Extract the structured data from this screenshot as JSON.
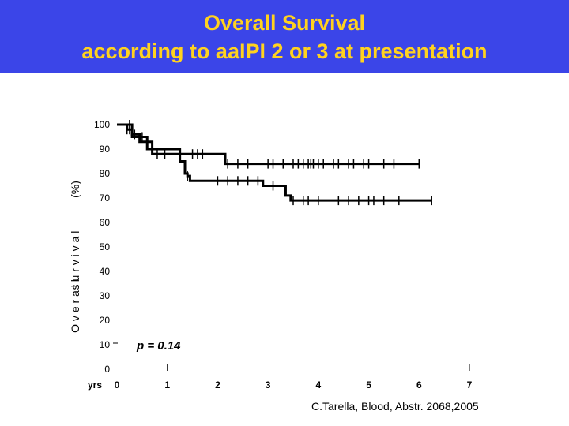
{
  "header": {
    "title_line1": "Overall Survival",
    "title_line2": "according to aaIPI  2 or 3  at presentation",
    "bar_color": "#3b45e8",
    "text_color": "#ffd21f"
  },
  "chart_data": {
    "type": "line",
    "title": "Overall Survival according to aaIPI 2 or 3 at presentation",
    "xlabel": "yrs",
    "ylabel_parts": [
      "(%)",
      "s u r v i v a l",
      "O v e r a l l"
    ],
    "x_ticks": [
      "0",
      "1",
      "2",
      "3",
      "4",
      "5",
      "6",
      "7"
    ],
    "y_ticks": [
      "0",
      "10",
      "20",
      "30",
      "40",
      "50",
      "60",
      "70",
      "80",
      "90",
      "100"
    ],
    "xlim": [
      0,
      7
    ],
    "ylim": [
      0,
      100
    ],
    "annotation": "p = 0.14",
    "series": [
      {
        "name": "upper curve",
        "steps": [
          [
            0,
            100
          ],
          [
            0.2,
            98
          ],
          [
            0.3,
            96
          ],
          [
            0.45,
            93
          ],
          [
            0.7,
            88
          ],
          [
            1.3,
            88
          ],
          [
            2.15,
            84
          ],
          [
            6.0,
            84
          ]
        ],
        "censored": [
          0.2,
          0.25,
          0.35,
          0.8,
          0.95,
          1.5,
          1.6,
          1.7,
          2.2,
          2.4,
          2.6,
          3.0,
          3.1,
          3.3,
          3.5,
          3.6,
          3.7,
          3.8,
          3.85,
          3.9,
          4.0,
          4.1,
          4.3,
          4.4,
          4.6,
          4.7,
          4.9,
          5.0,
          5.3,
          5.5,
          6.0
        ]
      },
      {
        "name": "lower curve",
        "steps": [
          [
            0,
            100
          ],
          [
            0.3,
            95
          ],
          [
            0.6,
            90
          ],
          [
            1.25,
            85
          ],
          [
            1.35,
            80
          ],
          [
            1.4,
            79
          ],
          [
            1.45,
            77
          ],
          [
            2.0,
            77
          ],
          [
            2.9,
            75
          ],
          [
            3.35,
            71
          ],
          [
            3.45,
            69
          ],
          [
            6.25,
            69
          ]
        ],
        "censored": [
          0.25,
          0.5,
          1.4,
          2.0,
          2.2,
          2.4,
          2.6,
          2.8,
          3.1,
          3.5,
          3.7,
          3.8,
          4.0,
          4.4,
          4.6,
          4.8,
          5.0,
          5.1,
          5.3,
          5.6,
          6.25
        ]
      }
    ]
  },
  "footer": {
    "citation": "C.Tarella, Blood, Abstr. 2068,2005"
  }
}
